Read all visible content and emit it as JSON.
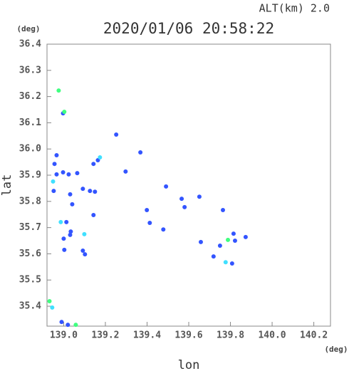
{
  "chart_data": {
    "type": "scatter",
    "title": "2020/01/06 20:58:22",
    "altitude_label": "ALT(km)  2.0",
    "y_unit": "(deg)",
    "x_unit": "(deg)",
    "xlabel": "lon",
    "ylabel": "lat",
    "xlim": [
      138.92,
      140.28
    ],
    "ylim": [
      35.324,
      36.4
    ],
    "xticks": [
      {
        "value": 139.0,
        "label": "139.0"
      },
      139.2,
      139.4,
      139.6,
      139.8,
      {
        "value": 140.0,
        "label": "140.0"
      },
      140.2
    ],
    "yticks": [
      35.4,
      35.5,
      35.6,
      35.7,
      35.8,
      35.9,
      {
        "value": 36.0,
        "label": "36.0"
      },
      36.1,
      36.2,
      36.3,
      36.4
    ],
    "series": [
      {
        "color": "#3355ff",
        "x": [
          138.997,
          138.966,
          138.956,
          138.966,
          138.997,
          139.024,
          138.952,
          139.031,
          139.065,
          139.092,
          139.126,
          139.143,
          139.164,
          139.252,
          139.297,
          139.368,
          139.15,
          139.143,
          139.041,
          139.013,
          139.034,
          139.0,
          139.031,
          139.003,
          139.102,
          139.092,
          139.413,
          139.478,
          139.399,
          139.491,
          139.566,
          139.58,
          139.651,
          139.764,
          139.658,
          139.75,
          139.815,
          139.822,
          139.873,
          139.719,
          139.808,
          138.99,
          139.02
        ],
        "y": [
          36.136,
          35.976,
          35.943,
          35.903,
          35.911,
          35.903,
          35.84,
          35.827,
          35.908,
          35.848,
          35.84,
          35.943,
          35.957,
          36.055,
          35.914,
          35.987,
          35.837,
          35.748,
          35.789,
          35.721,
          35.685,
          35.658,
          35.672,
          35.615,
          35.598,
          35.612,
          35.718,
          35.693,
          35.767,
          35.857,
          35.81,
          35.778,
          35.818,
          35.767,
          35.645,
          35.631,
          35.677,
          35.65,
          35.664,
          35.59,
          35.563,
          35.34,
          35.329
        ]
      },
      {
        "color": "#40e0ff",
        "x": [
          138.949,
          139.174,
          138.986,
          139.099,
          139.777,
          138.945
        ],
        "y": [
          35.876,
          35.968,
          35.721,
          35.675,
          35.568,
          35.395
        ]
      },
      {
        "color": "#40ff80",
        "x": [
          138.976,
          139.003,
          139.788,
          138.932,
          139.058
        ],
        "y": [
          36.223,
          36.142,
          35.653,
          35.419,
          35.329
        ]
      }
    ]
  }
}
